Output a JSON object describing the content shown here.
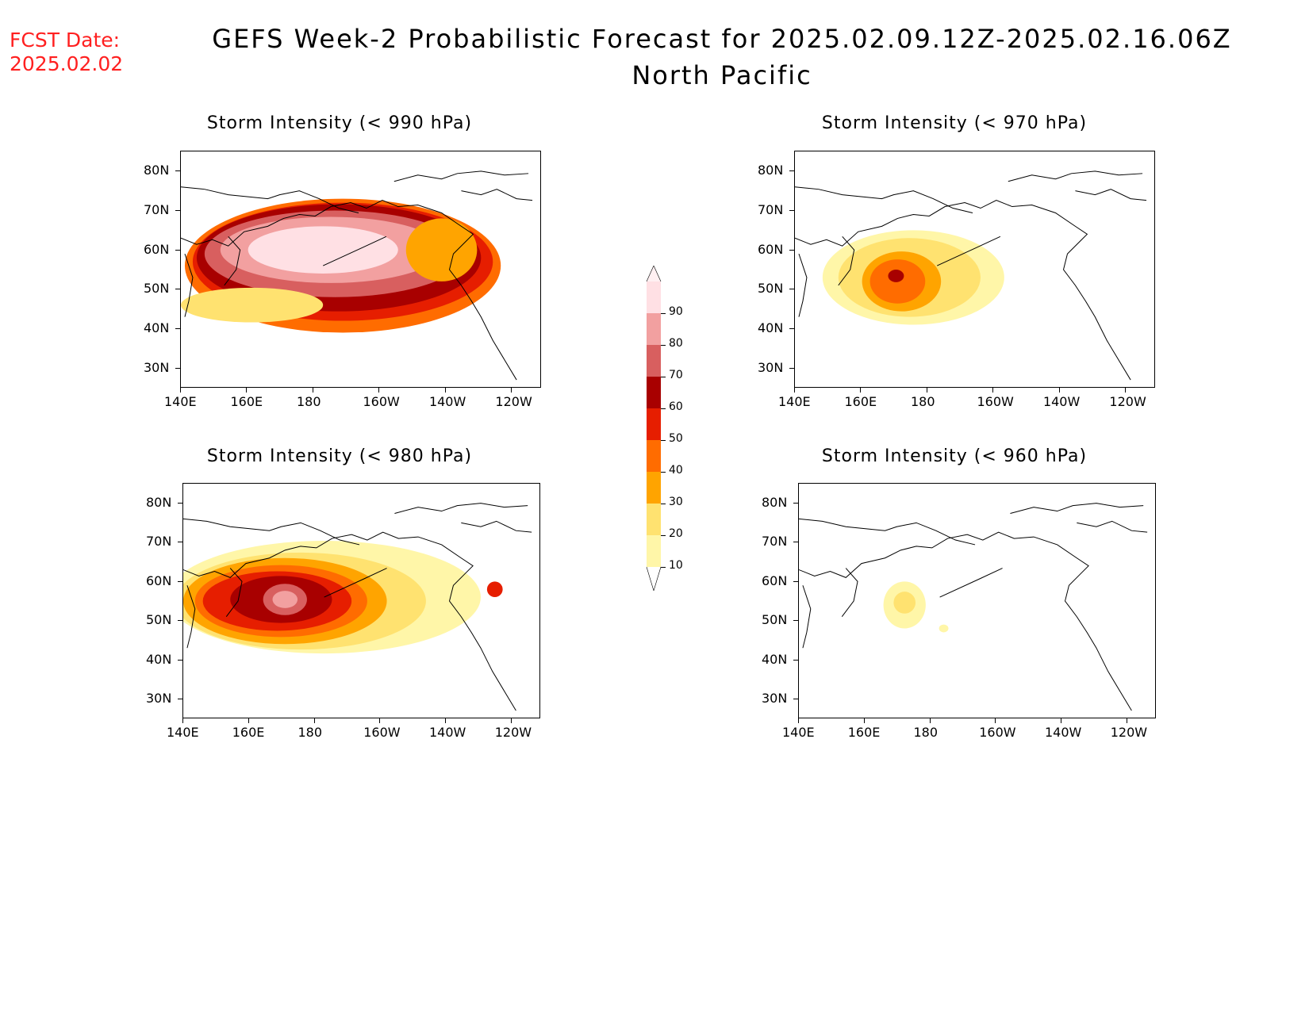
{
  "header": {
    "fcst_label": "FCST Date:",
    "fcst_date": "2025.02.02",
    "title": "GEFS Week-2 Probabilistic Forecast for 2025.02.09.12Z-2025.02.16.06Z",
    "region": "North Pacific"
  },
  "axes": {
    "lat_labels": [
      "80N",
      "70N",
      "60N",
      "50N",
      "40N",
      "30N"
    ],
    "lon_labels": [
      "140E",
      "160E",
      "180",
      "160W",
      "140W",
      "120W"
    ]
  },
  "panels": [
    {
      "id": "p990",
      "title": "Storm Intensity (< 990 hPa)",
      "coverage": "widespread"
    },
    {
      "id": "p970",
      "title": "Storm Intensity (< 970 hPa)",
      "coverage": "moderate"
    },
    {
      "id": "p980",
      "title": "Storm Intensity (< 980 hPa)",
      "coverage": "broad"
    },
    {
      "id": "p960",
      "title": "Storm Intensity (< 960 hPa)",
      "coverage": "small"
    }
  ],
  "colorbar": {
    "levels": [
      "10",
      "20",
      "30",
      "40",
      "50",
      "60",
      "70",
      "80",
      "90"
    ],
    "colors": [
      "#fff6a8",
      "#ffe270",
      "#ffa400",
      "#ff6c00",
      "#e61e00",
      "#a80000",
      "#d85f5f",
      "#f2a0a0",
      "#ffe0e4"
    ]
  }
}
